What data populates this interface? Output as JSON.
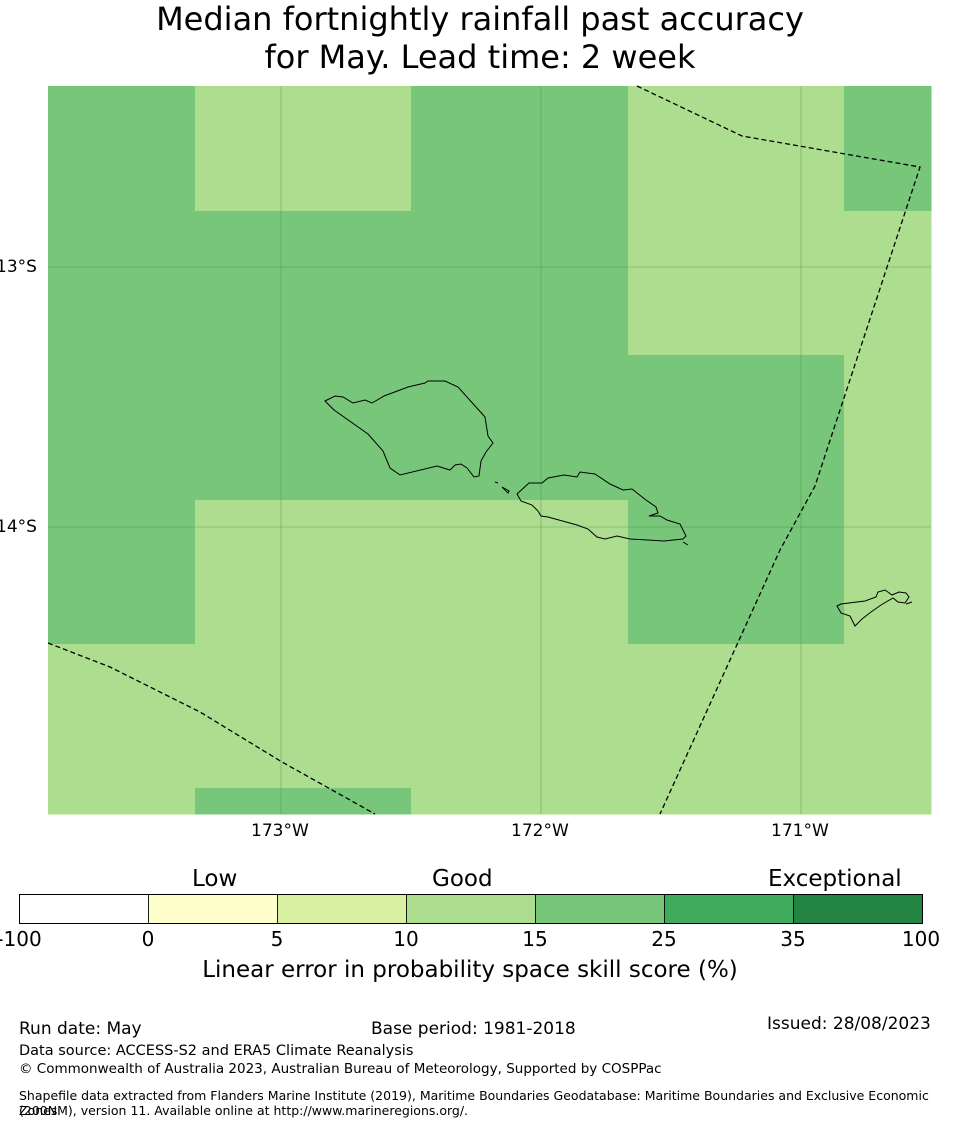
{
  "title": {
    "line1": "Median fortnightly rainfall past accuracy",
    "line2": "for May. Lead time: 2 week"
  },
  "map": {
    "lat_labels": [
      "13°S",
      "14°S"
    ],
    "lon_labels": [
      "173°W",
      "172°W",
      "171°W"
    ],
    "grid_cells": [
      {
        "row": 0,
        "col": 0,
        "category": "15-25"
      },
      {
        "row": 0,
        "col": 1,
        "category": "10-15"
      },
      {
        "row": 0,
        "col": 2,
        "category": "15-25"
      },
      {
        "row": 0,
        "col": 3,
        "category": "10-15"
      },
      {
        "row": 0,
        "col": 4,
        "category": "15-25"
      },
      {
        "row": 1,
        "col": 0,
        "category": "15-25"
      },
      {
        "row": 1,
        "col": 1,
        "category": "15-25"
      },
      {
        "row": 1,
        "col": 2,
        "category": "15-25"
      },
      {
        "row": 1,
        "col": 3,
        "category": "10-15"
      },
      {
        "row": 1,
        "col": 4,
        "category": "10-15"
      },
      {
        "row": 2,
        "col": 0,
        "category": "15-25"
      },
      {
        "row": 2,
        "col": 1,
        "category": "15-25"
      },
      {
        "row": 2,
        "col": 2,
        "category": "15-25"
      },
      {
        "row": 2,
        "col": 3,
        "category": "15-25"
      },
      {
        "row": 2,
        "col": 4,
        "category": "10-15"
      },
      {
        "row": 3,
        "col": 0,
        "category": "15-25"
      },
      {
        "row": 3,
        "col": 1,
        "category": "10-15"
      },
      {
        "row": 3,
        "col": 2,
        "category": "10-15"
      },
      {
        "row": 3,
        "col": 3,
        "category": "15-25"
      },
      {
        "row": 3,
        "col": 4,
        "category": "10-15"
      },
      {
        "row": 4,
        "col": 0,
        "category": "10-15"
      },
      {
        "row": 4,
        "col": 1,
        "category": "10-15"
      },
      {
        "row": 4,
        "col": 2,
        "category": "10-15"
      },
      {
        "row": 4,
        "col": 3,
        "category": "10-15"
      },
      {
        "row": 4,
        "col": 4,
        "category": "10-15"
      },
      {
        "row": 5,
        "col": 0,
        "category": "10-15"
      },
      {
        "row": 5,
        "col": 1,
        "category": "15-25"
      },
      {
        "row": 5,
        "col": 2,
        "category": "10-15"
      },
      {
        "row": 5,
        "col": 3,
        "category": "10-15"
      },
      {
        "row": 5,
        "col": 4,
        "category": "10-15"
      }
    ]
  },
  "colorbar": {
    "category_labels": [
      "Low",
      "Good",
      "Exceptional"
    ],
    "ticks": [
      "-100",
      "0",
      "5",
      "10",
      "15",
      "25",
      "35",
      "100"
    ],
    "colors": [
      "#ffffff",
      "#ffffcc",
      "#d9f0a3",
      "#addd8e",
      "#78c679",
      "#41ab5d",
      "#238443"
    ],
    "label": "Linear error in probability space skill score (%)"
  },
  "footer": {
    "run_date": "Run date: May",
    "base_period": "Base period: 1981-2018",
    "issued": "Issued: 28/08/2023",
    "data_source": "Data source: ACCESS-S2 and ERA5 Climate Reanalysis",
    "copyright": "© Commonwealth of Australia 2023, Australian Bureau of Meteorology, Supported by COSPPac",
    "shapefile_line1": "Shapefile data extracted from Flanders Marine Institute (2019), Maritime Boundaries Geodatabase: Maritime Boundaries and Exclusive Economic Zones",
    "shapefile_line2": "(200NM), version 11. Available online at http://www.marineregions.org/."
  }
}
